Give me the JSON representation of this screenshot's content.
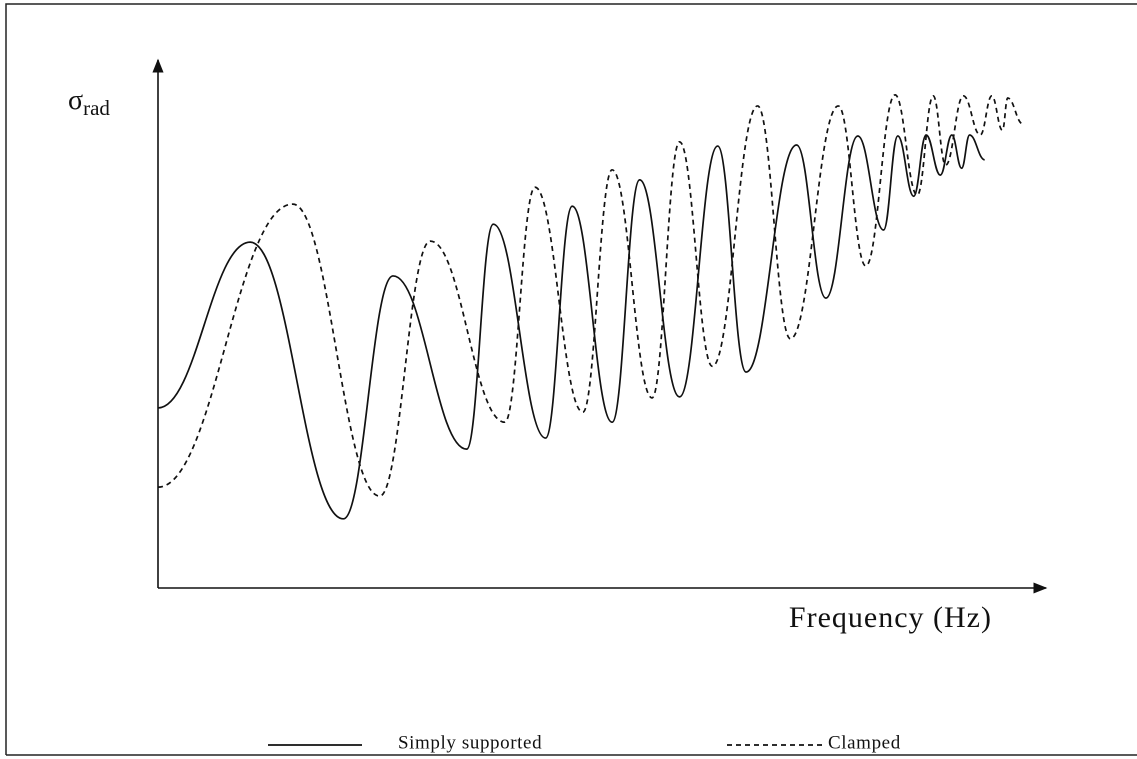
{
  "chart_data": {
    "type": "line",
    "ylabel": "σ",
    "ylabel_subscript": "rad",
    "xlabel": "Frequency (Hz)",
    "xlim": [
      0,
      100
    ],
    "ylim": [
      0,
      100
    ],
    "series": [
      {
        "name": "Simply supported",
        "color": "#111111",
        "style": "solid",
        "x": [
          0,
          10.4,
          20.9,
          26.5,
          34.8,
          37.8,
          43.7,
          46.7,
          51.2,
          54.3,
          58.8,
          63.1,
          66.3,
          72.0,
          75.3,
          78.9,
          81.8,
          83.4,
          85.2,
          86.6,
          88.2,
          89.5,
          90.6,
          91.5,
          93.2
        ],
        "values": [
          34.1,
          65.5,
          13.1,
          59.1,
          26.3,
          68.9,
          28.4,
          72.3,
          31.4,
          77.3,
          36.2,
          83.7,
          40.9,
          83.9,
          54.9,
          85.6,
          67.8,
          85.6,
          74.2,
          85.8,
          78.2,
          85.8,
          79.5,
          85.8,
          81.1
        ]
      },
      {
        "name": "Clamped",
        "color": "#111111",
        "style": "dashed",
        "x": [
          0,
          15.2,
          25.0,
          30.7,
          39.1,
          42.5,
          47.9,
          51.2,
          55.7,
          58.8,
          62.5,
          67.6,
          71.3,
          76.7,
          79.8,
          83.1,
          85.6,
          87.4,
          88.8,
          90.8,
          92.7,
          94.0,
          95.2,
          95.8,
          97.5
        ],
        "values": [
          19.1,
          72.7,
          17.4,
          65.7,
          31.4,
          75.9,
          33.3,
          79.2,
          36.0,
          84.5,
          42.0,
          91.3,
          47.2,
          91.3,
          61.0,
          93.4,
          74.4,
          93.2,
          80.1,
          93.2,
          85.8,
          93.2,
          86.7,
          92.8,
          87.9
        ]
      }
    ]
  }
}
